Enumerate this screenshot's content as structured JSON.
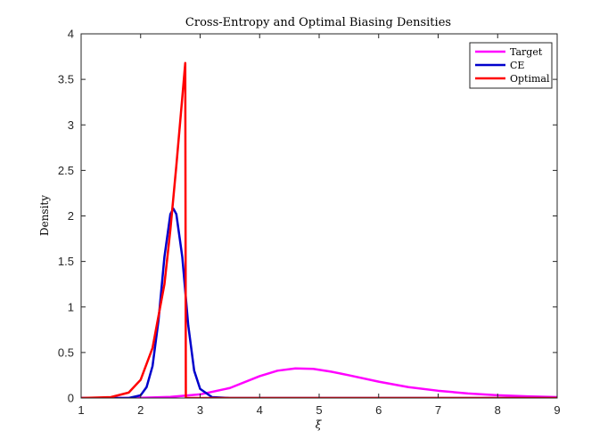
{
  "chart_data": {
    "type": "line",
    "title": "Cross-Entropy and Optimal Biasing Densities",
    "xlabel": "ξ",
    "ylabel": "Density",
    "xlim": [
      1,
      9
    ],
    "ylim": [
      0,
      4
    ],
    "xticks": [
      "1",
      "2",
      "3",
      "4",
      "5",
      "6",
      "7",
      "8",
      "9"
    ],
    "yticks": [
      "0",
      "0.5",
      "1",
      "1.5",
      "2",
      "2.5",
      "3",
      "3.5",
      "4"
    ],
    "legend_position": "top-right",
    "grid": false,
    "series": [
      {
        "name": "Target",
        "color": "#ff00ff",
        "x": [
          1.0,
          1.5,
          2.0,
          2.5,
          3.0,
          3.5,
          4.0,
          4.3,
          4.6,
          4.9,
          5.2,
          5.5,
          6.0,
          6.5,
          7.0,
          7.5,
          8.0,
          8.5,
          9.0
        ],
        "y": [
          0.0,
          0.0,
          0.003,
          0.012,
          0.04,
          0.11,
          0.24,
          0.3,
          0.325,
          0.32,
          0.29,
          0.25,
          0.18,
          0.12,
          0.08,
          0.05,
          0.03,
          0.018,
          0.01
        ]
      },
      {
        "name": "CE",
        "color": "#0000cc",
        "x": [
          1.0,
          1.8,
          2.0,
          2.1,
          2.2,
          2.3,
          2.4,
          2.5,
          2.55,
          2.6,
          2.7,
          2.8,
          2.9,
          3.0,
          3.2,
          3.5,
          9.0
        ],
        "y": [
          0.0,
          0.0,
          0.03,
          0.12,
          0.35,
          0.85,
          1.55,
          2.02,
          2.08,
          2.02,
          1.55,
          0.8,
          0.3,
          0.1,
          0.01,
          0.0,
          0.0
        ]
      },
      {
        "name": "Optimal",
        "color": "#ff0000",
        "x": [
          1.0,
          1.5,
          1.8,
          2.0,
          2.2,
          2.4,
          2.5,
          2.6,
          2.7,
          2.75,
          2.76,
          9.0
        ],
        "y": [
          0.0,
          0.01,
          0.06,
          0.2,
          0.55,
          1.25,
          1.85,
          2.55,
          3.3,
          3.68,
          0.0,
          0.0
        ]
      }
    ]
  }
}
